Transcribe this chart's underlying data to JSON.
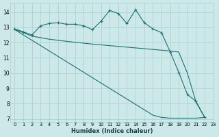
{
  "xlabel": "Humidex (Indice chaleur)",
  "bg_color": "#cce8e8",
  "line_color": "#1a7070",
  "grid_color": "#aacece",
  "xlim": [
    -0.5,
    23
  ],
  "ylim": [
    6.8,
    14.6
  ],
  "yticks": [
    7,
    8,
    9,
    10,
    11,
    12,
    13,
    14
  ],
  "xticks": [
    0,
    1,
    2,
    3,
    4,
    5,
    6,
    7,
    8,
    9,
    10,
    11,
    12,
    13,
    14,
    15,
    16,
    17,
    18,
    19,
    20,
    21,
    22,
    23
  ],
  "lineA_x": [
    0,
    1,
    2,
    3,
    4,
    5,
    6,
    7,
    8,
    9,
    10,
    11,
    12,
    13,
    14,
    15,
    16,
    17,
    18,
    19,
    20,
    21,
    22
  ],
  "lineA_y": [
    12.9,
    12.7,
    12.5,
    13.1,
    13.25,
    13.3,
    13.2,
    13.2,
    13.1,
    12.85,
    13.4,
    14.1,
    13.9,
    13.25,
    14.15,
    13.3,
    12.9,
    12.65,
    11.4,
    10.05,
    8.6,
    8.15,
    7.1
  ],
  "lineB_x": [
    0,
    1,
    2,
    3,
    4,
    5,
    6,
    7,
    8,
    9,
    10,
    11,
    12,
    13,
    14,
    15,
    16,
    17,
    18,
    19,
    20,
    21,
    22
  ],
  "lineB_y": [
    12.85,
    12.65,
    12.42,
    12.32,
    12.22,
    12.15,
    12.08,
    12.02,
    11.96,
    11.9,
    11.85,
    11.8,
    11.75,
    11.7,
    11.65,
    11.6,
    11.55,
    11.5,
    11.45,
    11.38,
    10.0,
    8.1,
    7.1
  ],
  "lineC_x": [
    0,
    1,
    2,
    3,
    4,
    5,
    6,
    7,
    8,
    9,
    10,
    11,
    12,
    13,
    14,
    15,
    16,
    17,
    18,
    19,
    20,
    21,
    22
  ],
  "lineC_y": [
    12.85,
    12.5,
    12.15,
    11.8,
    11.45,
    11.1,
    10.75,
    10.4,
    10.05,
    9.7,
    9.35,
    9.0,
    8.65,
    8.3,
    7.95,
    7.6,
    7.25,
    7.1,
    7.05,
    7.05,
    7.05,
    7.05,
    7.1
  ]
}
